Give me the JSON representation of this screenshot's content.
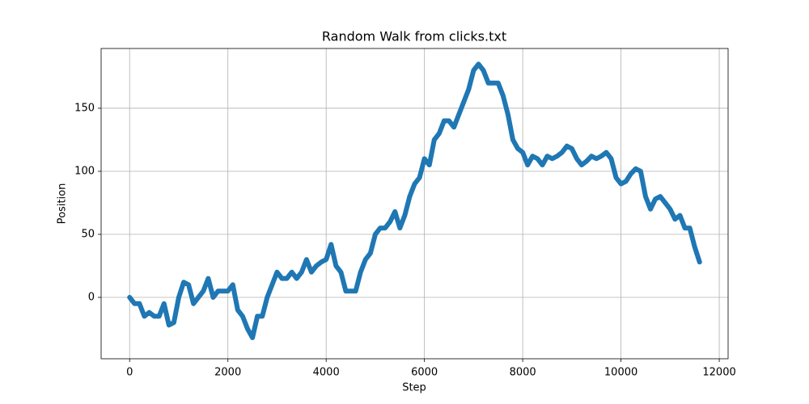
{
  "chart_data": {
    "type": "line",
    "title": "Random Walk from clicks.txt",
    "x_label": "Step",
    "y_label": "Position",
    "x": [
      0,
      100,
      200,
      300,
      400,
      500,
      600,
      700,
      800,
      900,
      1000,
      1100,
      1200,
      1300,
      1400,
      1500,
      1600,
      1700,
      1800,
      1900,
      2000,
      2100,
      2200,
      2300,
      2400,
      2500,
      2600,
      2700,
      2800,
      2900,
      3000,
      3100,
      3200,
      3300,
      3400,
      3500,
      3600,
      3700,
      3800,
      3900,
      4000,
      4100,
      4200,
      4300,
      4400,
      4500,
      4600,
      4700,
      4800,
      4900,
      5000,
      5100,
      5200,
      5300,
      5400,
      5500,
      5600,
      5700,
      5800,
      5900,
      6000,
      6100,
      6200,
      6300,
      6400,
      6500,
      6600,
      6700,
      6800,
      6900,
      7000,
      7100,
      7200,
      7300,
      7400,
      7500,
      7600,
      7700,
      7800,
      7900,
      8000,
      8100,
      8200,
      8300,
      8400,
      8500,
      8600,
      8700,
      8800,
      8900,
      9000,
      9100,
      9200,
      9300,
      9400,
      9500,
      9600,
      9700,
      9800,
      9900,
      10000,
      10100,
      10200,
      10300,
      10400,
      10500,
      10600,
      10700,
      10800,
      10900,
      11000,
      11100,
      11200,
      11300,
      11400,
      11500,
      11600
    ],
    "values": [
      0,
      -5,
      -5,
      -15,
      -12,
      -15,
      -15,
      -5,
      -22,
      -20,
      0,
      12,
      10,
      -5,
      0,
      5,
      15,
      0,
      5,
      5,
      5,
      10,
      -10,
      -15,
      -25,
      -32,
      -15,
      -15,
      0,
      10,
      20,
      15,
      15,
      20,
      15,
      20,
      30,
      20,
      25,
      28,
      30,
      42,
      25,
      20,
      5,
      5,
      5,
      20,
      30,
      35,
      50,
      55,
      55,
      60,
      68,
      55,
      65,
      80,
      90,
      95,
      110,
      105,
      125,
      130,
      140,
      140,
      135,
      145,
      155,
      165,
      180,
      185,
      180,
      170,
      170,
      170,
      160,
      145,
      125,
      118,
      115,
      105,
      112,
      110,
      105,
      112,
      110,
      112,
      115,
      120,
      118,
      110,
      105,
      108,
      112,
      110,
      112,
      115,
      110,
      95,
      90,
      92,
      98,
      102,
      100,
      80,
      70,
      78,
      80,
      75,
      70,
      62,
      65,
      55,
      55,
      40,
      28
    ],
    "color": "#1f77b4",
    "xlim": [
      -580,
      12180
    ],
    "ylim": [
      -48.7,
      197.4
    ],
    "xticks": [
      0,
      2000,
      4000,
      6000,
      8000,
      10000,
      12000
    ],
    "yticks": [
      0,
      50,
      100,
      150
    ],
    "grid": true
  }
}
